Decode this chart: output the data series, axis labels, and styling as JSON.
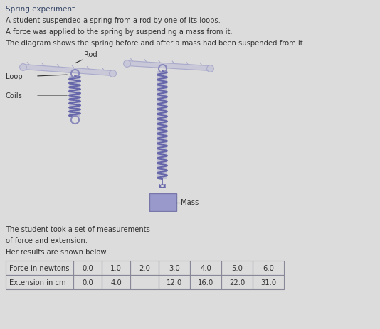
{
  "title": "Spring experiment",
  "para1": "A student suspended a spring from a rod by one of its loops.",
  "para2": "A force was applied to the spring by suspending a mass from it.",
  "para3": "The diagram shows the spring before and after a mass had been suspended from it.",
  "label_rod": "Rod",
  "label_loop": "Loop",
  "label_coils": "Coils",
  "label_mass": "Mass",
  "text_below": [
    "The student took a set of measurements",
    "of force and extension.",
    "Her results are shown below"
  ],
  "table_headers": [
    "Force in newtons",
    "0.0",
    "1.0",
    "2.0",
    "3.0",
    "4.0",
    "5.0",
    "6.0"
  ],
  "table_row2": [
    "Extension in cm",
    "0.0",
    "4.0",
    "",
    "12.0",
    "16.0",
    "22.0",
    "31.0"
  ],
  "bg_color": "#dcdcdc",
  "spring_fill_color": "#8888bb",
  "spring_edge_color": "#6666aa",
  "rod_face_color": "#c8c8d8",
  "rod_edge_color": "#aaaacc",
  "mass_face_color": "#9999cc",
  "mass_edge_color": "#7777aa",
  "text_color": "#333333",
  "label_color": "#5566aa",
  "table_border_color": "#888899",
  "title_color": "#334466"
}
